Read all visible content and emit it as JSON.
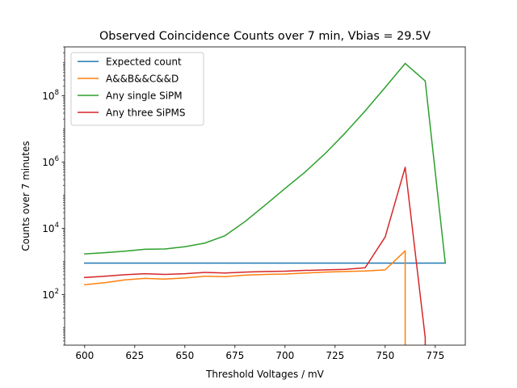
{
  "chart_data": {
    "type": "line",
    "title": "Observed Coincidence Counts over 7 min, Vbias = 29.5V",
    "xlabel": "Threshold Voltages / mV",
    "ylabel": "Counts over 7 minutes",
    "xlim": [
      590,
      790
    ],
    "ylim": [
      3,
      3000000000
    ],
    "yscale": "log",
    "x_ticks": [
      600,
      625,
      650,
      675,
      700,
      725,
      750,
      775
    ],
    "y_ticks": [
      {
        "value": 100,
        "base": "10",
        "exp": "2"
      },
      {
        "value": 10000,
        "base": "10",
        "exp": "4"
      },
      {
        "value": 1000000,
        "base": "10",
        "exp": "6"
      },
      {
        "value": 100000000,
        "base": "10",
        "exp": "8"
      }
    ],
    "legend_position": "top-left",
    "grid": false,
    "series": [
      {
        "name": "Expected count",
        "color": "#1f77b4",
        "points": [
          [
            600,
            900
          ],
          [
            780,
            900
          ]
        ]
      },
      {
        "name": "A&&B&&C&&D",
        "color": "#ff7f0e",
        "points": [
          [
            600,
            200
          ],
          [
            610,
            230
          ],
          [
            620,
            280
          ],
          [
            630,
            310
          ],
          [
            640,
            295
          ],
          [
            650,
            320
          ],
          [
            660,
            360
          ],
          [
            670,
            350
          ],
          [
            680,
            390
          ],
          [
            690,
            410
          ],
          [
            700,
            420
          ],
          [
            710,
            450
          ],
          [
            720,
            480
          ],
          [
            730,
            500
          ],
          [
            740,
            520
          ],
          [
            750,
            560
          ],
          [
            760,
            2100
          ],
          [
            760,
            0.5
          ]
        ]
      },
      {
        "name": "Any single SiPM",
        "color": "#2ca02c",
        "points": [
          [
            600,
            1700
          ],
          [
            610,
            1850
          ],
          [
            620,
            2050
          ],
          [
            630,
            2350
          ],
          [
            640,
            2400
          ],
          [
            650,
            2800
          ],
          [
            660,
            3600
          ],
          [
            670,
            6000
          ],
          [
            680,
            16000
          ],
          [
            690,
            50000
          ],
          [
            700,
            160000
          ],
          [
            710,
            500000
          ],
          [
            720,
            1800000
          ],
          [
            730,
            7500000
          ],
          [
            740,
            35000000
          ],
          [
            750,
            180000000
          ],
          [
            760,
            950000000
          ],
          [
            770,
            280000000
          ],
          [
            780,
            900
          ]
        ]
      },
      {
        "name": "Any three SiPMS",
        "color": "#d62728",
        "points": [
          [
            600,
            330
          ],
          [
            610,
            360
          ],
          [
            620,
            400
          ],
          [
            630,
            430
          ],
          [
            640,
            410
          ],
          [
            650,
            430
          ],
          [
            660,
            470
          ],
          [
            670,
            450
          ],
          [
            680,
            480
          ],
          [
            690,
            500
          ],
          [
            700,
            510
          ],
          [
            710,
            540
          ],
          [
            720,
            560
          ],
          [
            730,
            580
          ],
          [
            740,
            650
          ],
          [
            750,
            5500
          ],
          [
            760,
            700000
          ],
          [
            770,
            5
          ],
          [
            770,
            0.5
          ]
        ]
      }
    ]
  }
}
